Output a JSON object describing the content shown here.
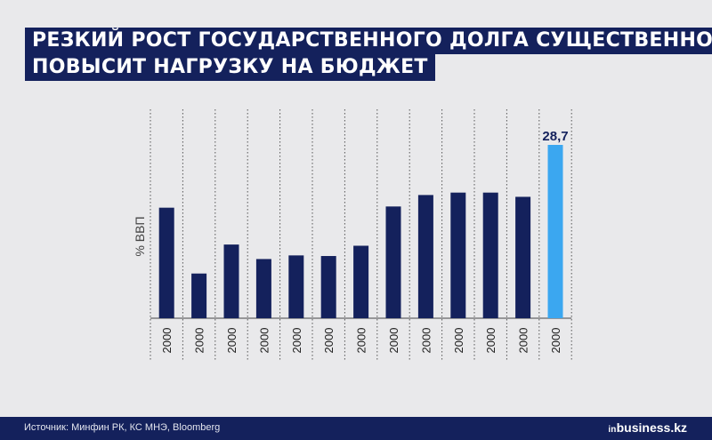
{
  "title": {
    "line1": "РЕЗКИЙ РОСТ ГОСУДАРСТВЕННОГО ДОЛГА СУЩЕСТВЕННО",
    "line2": "ПОВЫСИТ НАГРУЗКУ НА БЮДЖЕТ"
  },
  "chart_data": {
    "type": "bar",
    "ylabel": "% ВВП",
    "categories": [
      "2000",
      "2000",
      "2000",
      "2000",
      "2000",
      "2000",
      "2000",
      "2000",
      "2000",
      "2000",
      "2000",
      "2000",
      "2000"
    ],
    "values": [
      18.3,
      7.4,
      12.2,
      9.8,
      10.4,
      10.3,
      12.0,
      18.5,
      20.4,
      20.8,
      20.8,
      20.1,
      28.7
    ],
    "data_labels": [
      "",
      "",
      "",
      "",
      "",
      "",
      "",
      "",
      "",
      "",
      "",
      "",
      "28,7"
    ],
    "highlight_index": 12,
    "ylim": [
      0,
      28.7
    ],
    "grid": "vertical dotted separators",
    "colors": {
      "bar": "#14215c",
      "highlight": "#3ba7f0",
      "label": "#14215c"
    }
  },
  "footer": {
    "source": "Источник: Минфин РК, КС МНЭ, Bloomberg",
    "brand_prefix": "in",
    "brand_name": "business.kz"
  }
}
